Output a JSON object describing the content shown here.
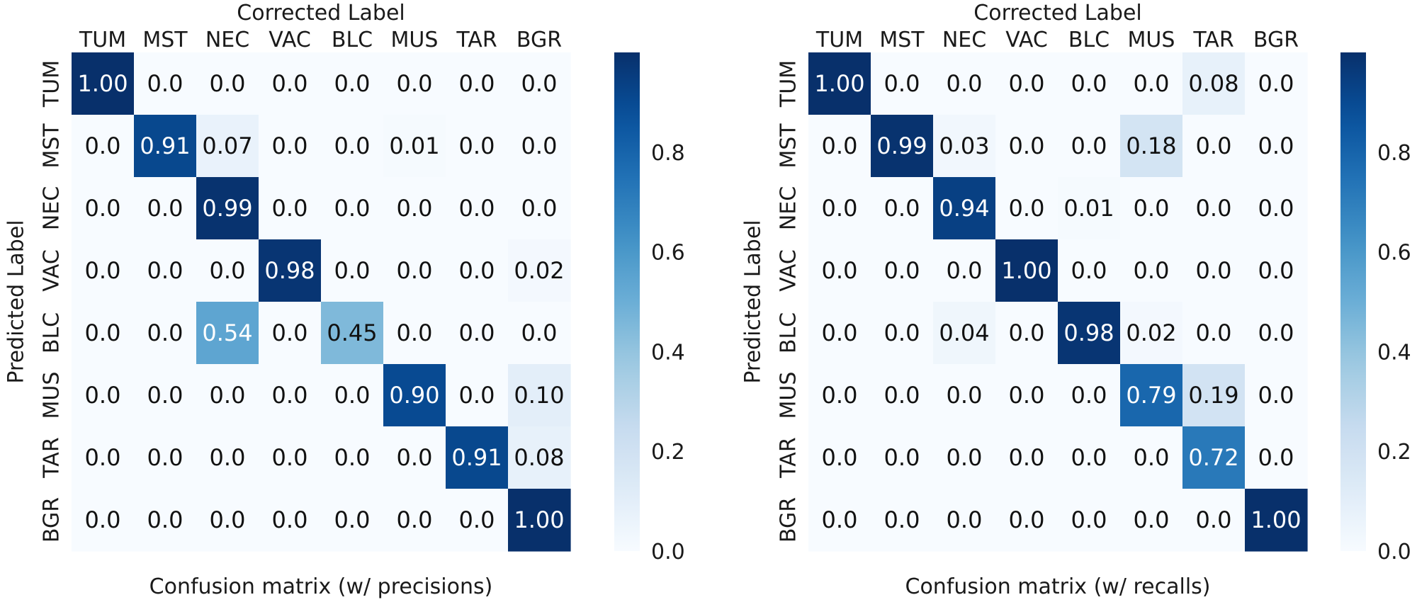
{
  "chart_data": [
    {
      "type": "heatmap",
      "title": "Confusion matrix (w/ precisions)",
      "xlabel": "Corrected Label",
      "ylabel": "Predicted Label",
      "x_categories": [
        "TUM",
        "MST",
        "NEC",
        "VAC",
        "BLC",
        "MUS",
        "TAR",
        "BGR"
      ],
      "y_categories": [
        "TUM",
        "MST",
        "NEC",
        "VAC",
        "BLC",
        "MUS",
        "TAR",
        "BGR"
      ],
      "values": [
        [
          1.0,
          0.0,
          0.0,
          0.0,
          0.0,
          0.0,
          0.0,
          0.0
        ],
        [
          0.0,
          0.91,
          0.07,
          0.0,
          0.0,
          0.01,
          0.0,
          0.0
        ],
        [
          0.0,
          0.0,
          0.99,
          0.0,
          0.0,
          0.0,
          0.0,
          0.0
        ],
        [
          0.0,
          0.0,
          0.0,
          0.98,
          0.0,
          0.0,
          0.0,
          0.02
        ],
        [
          0.0,
          0.0,
          0.54,
          0.0,
          0.45,
          0.0,
          0.0,
          0.0
        ],
        [
          0.0,
          0.0,
          0.0,
          0.0,
          0.0,
          0.9,
          0.0,
          0.1
        ],
        [
          0.0,
          0.0,
          0.0,
          0.0,
          0.0,
          0.0,
          0.91,
          0.08
        ],
        [
          0.0,
          0.0,
          0.0,
          0.0,
          0.0,
          0.0,
          0.0,
          1.0
        ]
      ],
      "labels": [
        [
          "1.00",
          "0.0",
          "0.0",
          "0.0",
          "0.0",
          "0.0",
          "0.0",
          "0.0"
        ],
        [
          "0.0",
          "0.91",
          "0.07",
          "0.0",
          "0.0",
          "0.01",
          "0.0",
          "0.0"
        ],
        [
          "0.0",
          "0.0",
          "0.99",
          "0.0",
          "0.0",
          "0.0",
          "0.0",
          "0.0"
        ],
        [
          "0.0",
          "0.0",
          "0.0",
          "0.98",
          "0.0",
          "0.0",
          "0.0",
          "0.02"
        ],
        [
          "0.0",
          "0.0",
          "0.54",
          "0.0",
          "0.45",
          "0.0",
          "0.0",
          "0.0"
        ],
        [
          "0.0",
          "0.0",
          "0.0",
          "0.0",
          "0.0",
          "0.90",
          "0.0",
          "0.10"
        ],
        [
          "0.0",
          "0.0",
          "0.0",
          "0.0",
          "0.0",
          "0.0",
          "0.91",
          "0.08"
        ],
        [
          "0.0",
          "0.0",
          "0.0",
          "0.0",
          "0.0",
          "0.0",
          "0.0",
          "1.00"
        ]
      ],
      "colormap": "Blues",
      "vmin": 0.0,
      "vmax": 1.0,
      "colorbar_ticks": [
        0.0,
        0.2,
        0.4,
        0.6,
        0.8
      ],
      "colorbar_labels": [
        "0.0",
        "0.2",
        "0.4",
        "0.6",
        "0.8"
      ]
    },
    {
      "type": "heatmap",
      "title": "Confusion matrix (w/ recalls)",
      "xlabel": "Corrected Label",
      "ylabel": "Predicted Label",
      "x_categories": [
        "TUM",
        "MST",
        "NEC",
        "VAC",
        "BLC",
        "MUS",
        "TAR",
        "BGR"
      ],
      "y_categories": [
        "TUM",
        "MST",
        "NEC",
        "VAC",
        "BLC",
        "MUS",
        "TAR",
        "BGR"
      ],
      "values": [
        [
          1.0,
          0.0,
          0.0,
          0.0,
          0.0,
          0.0,
          0.08,
          0.0
        ],
        [
          0.0,
          0.99,
          0.03,
          0.0,
          0.0,
          0.18,
          0.0,
          0.0
        ],
        [
          0.0,
          0.0,
          0.94,
          0.0,
          0.01,
          0.0,
          0.0,
          0.0
        ],
        [
          0.0,
          0.0,
          0.0,
          1.0,
          0.0,
          0.0,
          0.0,
          0.0
        ],
        [
          0.0,
          0.0,
          0.04,
          0.0,
          0.98,
          0.02,
          0.0,
          0.0
        ],
        [
          0.0,
          0.0,
          0.0,
          0.0,
          0.0,
          0.79,
          0.19,
          0.0
        ],
        [
          0.0,
          0.0,
          0.0,
          0.0,
          0.0,
          0.0,
          0.72,
          0.0
        ],
        [
          0.0,
          0.0,
          0.0,
          0.0,
          0.0,
          0.0,
          0.0,
          1.0
        ]
      ],
      "labels": [
        [
          "1.00",
          "0.0",
          "0.0",
          "0.0",
          "0.0",
          "0.0",
          "0.08",
          "0.0"
        ],
        [
          "0.0",
          "0.99",
          "0.03",
          "0.0",
          "0.0",
          "0.18",
          "0.0",
          "0.0"
        ],
        [
          "0.0",
          "0.0",
          "0.94",
          "0.0",
          "0.01",
          "0.0",
          "0.0",
          "0.0"
        ],
        [
          "0.0",
          "0.0",
          "0.0",
          "1.00",
          "0.0",
          "0.0",
          "0.0",
          "0.0"
        ],
        [
          "0.0",
          "0.0",
          "0.04",
          "0.0",
          "0.98",
          "0.02",
          "0.0",
          "0.0"
        ],
        [
          "0.0",
          "0.0",
          "0.0",
          "0.0",
          "0.0",
          "0.79",
          "0.19",
          "0.0"
        ],
        [
          "0.0",
          "0.0",
          "0.0",
          "0.0",
          "0.0",
          "0.0",
          "0.72",
          "0.0"
        ],
        [
          "0.0",
          "0.0",
          "0.0",
          "0.0",
          "0.0",
          "0.0",
          "0.0",
          "1.00"
        ]
      ],
      "colormap": "Blues",
      "vmin": 0.0,
      "vmax": 1.0,
      "colorbar_ticks": [
        0.0,
        0.2,
        0.4,
        0.6,
        0.8
      ],
      "colorbar_labels": [
        "0.0",
        "0.2",
        "0.4",
        "0.6",
        "0.8"
      ]
    }
  ]
}
